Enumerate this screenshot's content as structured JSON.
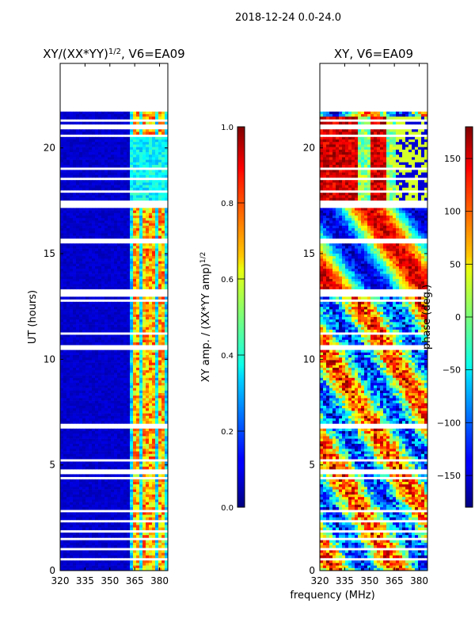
{
  "chart_data": {
    "suptitle": "2018-12-24 0.0-24.0",
    "xlabel": "frequency (MHz)",
    "panels": [
      {
        "type": "heatmap",
        "title_main": "XY/(XX*YY)",
        "title_sup": "1/2",
        "title_tail": ", V6=EA09",
        "ylabel": "UT (hours)",
        "xlim": [
          320,
          385
        ],
        "ylim": [
          0,
          24
        ],
        "xticks": [
          "320",
          "335",
          "350",
          "365",
          "380"
        ],
        "xtick_values": [
          320,
          335,
          350,
          365,
          380
        ],
        "yticks": [
          "0",
          "5",
          "10",
          "15",
          "20"
        ],
        "ytick_values": [
          0,
          5,
          10,
          15,
          20
        ],
        "data_top_ut": 21.7,
        "colorbar": {
          "label_main": "XY amp. / (XX*YY amp)",
          "label_sup": "1/2",
          "range": [
            0.0,
            1.0
          ],
          "ticks": [
            "0.0",
            "0.2",
            "0.4",
            "0.6",
            "0.8",
            "1.0"
          ],
          "tick_values": [
            0.0,
            0.2,
            0.4,
            0.6,
            0.8,
            1.0
          ]
        }
      },
      {
        "type": "heatmap",
        "title_main": "XY, V6=EA09",
        "ylabel": "",
        "xlim": [
          320,
          385
        ],
        "ylim": [
          0,
          24
        ],
        "xticks": [
          "320",
          "335",
          "350",
          "365",
          "380"
        ],
        "xtick_values": [
          320,
          335,
          350,
          365,
          380
        ],
        "yticks": [
          "0",
          "5",
          "10",
          "15",
          "20"
        ],
        "ytick_values": [
          0,
          5,
          10,
          15,
          20
        ],
        "data_top_ut": 21.7,
        "colorbar": {
          "label_main": "phase (deg.)",
          "range": [
            -180,
            180
          ],
          "ticks": [
            "−150",
            "−100",
            "−50",
            "0",
            "50",
            "100",
            "150"
          ],
          "tick_values": [
            -150,
            -100,
            -50,
            0,
            50,
            100,
            150
          ]
        }
      }
    ],
    "gaps_ut": [
      [
        0.5,
        0.6
      ],
      [
        0.9,
        1.1
      ],
      [
        1.4,
        1.5
      ],
      [
        1.8,
        1.9
      ],
      [
        2.3,
        2.35
      ],
      [
        2.8,
        2.85
      ],
      [
        4.3,
        4.4
      ],
      [
        4.6,
        4.8
      ],
      [
        5.2,
        5.25
      ],
      [
        6.7,
        6.9
      ],
      [
        7.3,
        7.35
      ],
      [
        7.8,
        7.85
      ],
      [
        9.9,
        10.0
      ],
      [
        10.4,
        10.7
      ],
      [
        11.2,
        11.25
      ],
      [
        12.7,
        12.8
      ],
      [
        13.0,
        13.3
      ],
      [
        14.6,
        14.7
      ],
      [
        15.5,
        15.7
      ],
      [
        17.2,
        17.5
      ],
      [
        17.9,
        18.0
      ],
      [
        18.5,
        18.55
      ],
      [
        19.0,
        19.05
      ],
      [
        20.5,
        20.7
      ],
      [
        20.9,
        21.1
      ],
      [
        21.2,
        21.3
      ]
    ]
  }
}
